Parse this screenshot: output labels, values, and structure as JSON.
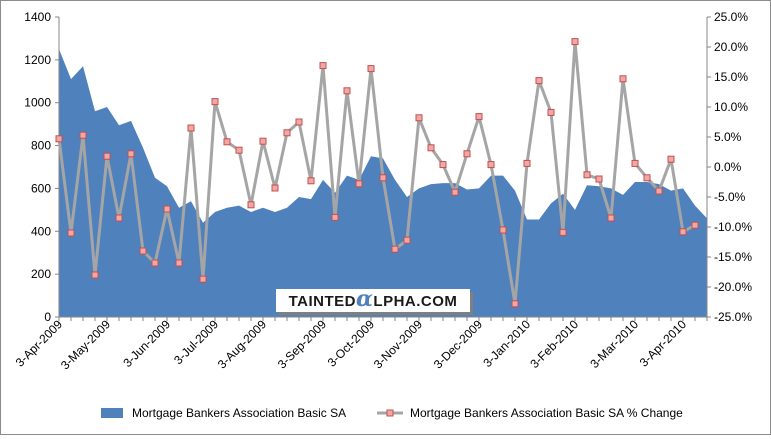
{
  "chart_data": {
    "type": "area+line",
    "title": "",
    "watermark": "TAINTEDALPHA.COM",
    "colors": {
      "area": "#4f81bd",
      "line": "#a5a5a5",
      "marker_fill": "#f2a7a7",
      "marker_edge": "#c0504d"
    },
    "left_axis": {
      "min": 0,
      "max": 1400,
      "step": 200,
      "ticks": [
        "0",
        "200",
        "400",
        "600",
        "800",
        "1000",
        "1200",
        "1400"
      ]
    },
    "right_axis": {
      "min": -25,
      "max": 25,
      "step": 5,
      "ticks": [
        "-25.0%",
        "-20.0%",
        "-15.0%",
        "-10.0%",
        "-5.0%",
        "0.0%",
        "5.0%",
        "10.0%",
        "15.0%",
        "20.0%",
        "25.0%"
      ]
    },
    "x_tick_labels": [
      "3-Apr-2009",
      "3-May-2009",
      "3-Jun-2009",
      "3-Jul-2009",
      "3-Aug-2009",
      "3-Sep-2009",
      "3-Oct-2009",
      "3-Nov-2009",
      "3-Dec-2009",
      "3-Jan-2010",
      "3-Feb-2010",
      "3-Mar-2010",
      "3-Apr-2010"
    ],
    "x_tick_week_index": [
      0,
      4,
      9,
      13,
      17,
      22,
      26,
      30,
      35,
      39,
      43,
      48,
      52
    ],
    "grid": false,
    "legend_position": "bottom",
    "series": [
      {
        "name": "Mortgage Bankers Association Basic SA",
        "axis": "left",
        "kind": "area",
        "values": [
          1250,
          1110,
          1170,
          960,
          980,
          895,
          915,
          790,
          650,
          610,
          510,
          540,
          440,
          490,
          510,
          520,
          490,
          510,
          490,
          510,
          560,
          550,
          640,
          580,
          660,
          640,
          750,
          740,
          640,
          560,
          600,
          620,
          625,
          625,
          595,
          600,
          660,
          660,
          590,
          455,
          455,
          530,
          575,
          500,
          615,
          610,
          600,
          570,
          630,
          630,
          620,
          590,
          600,
          520,
          460
        ]
      },
      {
        "name": "Mortgage Bankers Association Basic SA % Change",
        "axis": "right",
        "kind": "line",
        "values": [
          4.7,
          -11.0,
          5.3,
          -18.0,
          1.8,
          -8.5,
          2.2,
          -14.0,
          -16.0,
          -7.0,
          -16.0,
          6.5,
          -18.7,
          10.9,
          4.2,
          2.8,
          -6.3,
          4.3,
          -3.5,
          5.7,
          7.5,
          -2.3,
          16.9,
          -8.4,
          12.7,
          -2.8,
          16.4,
          -1.8,
          -13.7,
          -12.2,
          8.2,
          3.2,
          0.4,
          -4.2,
          2.2,
          8.4,
          0.4,
          -10.5,
          -22.8,
          0.6,
          14.4,
          9.1,
          -10.9,
          20.9,
          -1.3,
          -2.0,
          -8.5,
          14.7,
          0.6,
          -1.8,
          -4.0,
          1.3,
          -10.8,
          -9.7
        ]
      }
    ]
  }
}
